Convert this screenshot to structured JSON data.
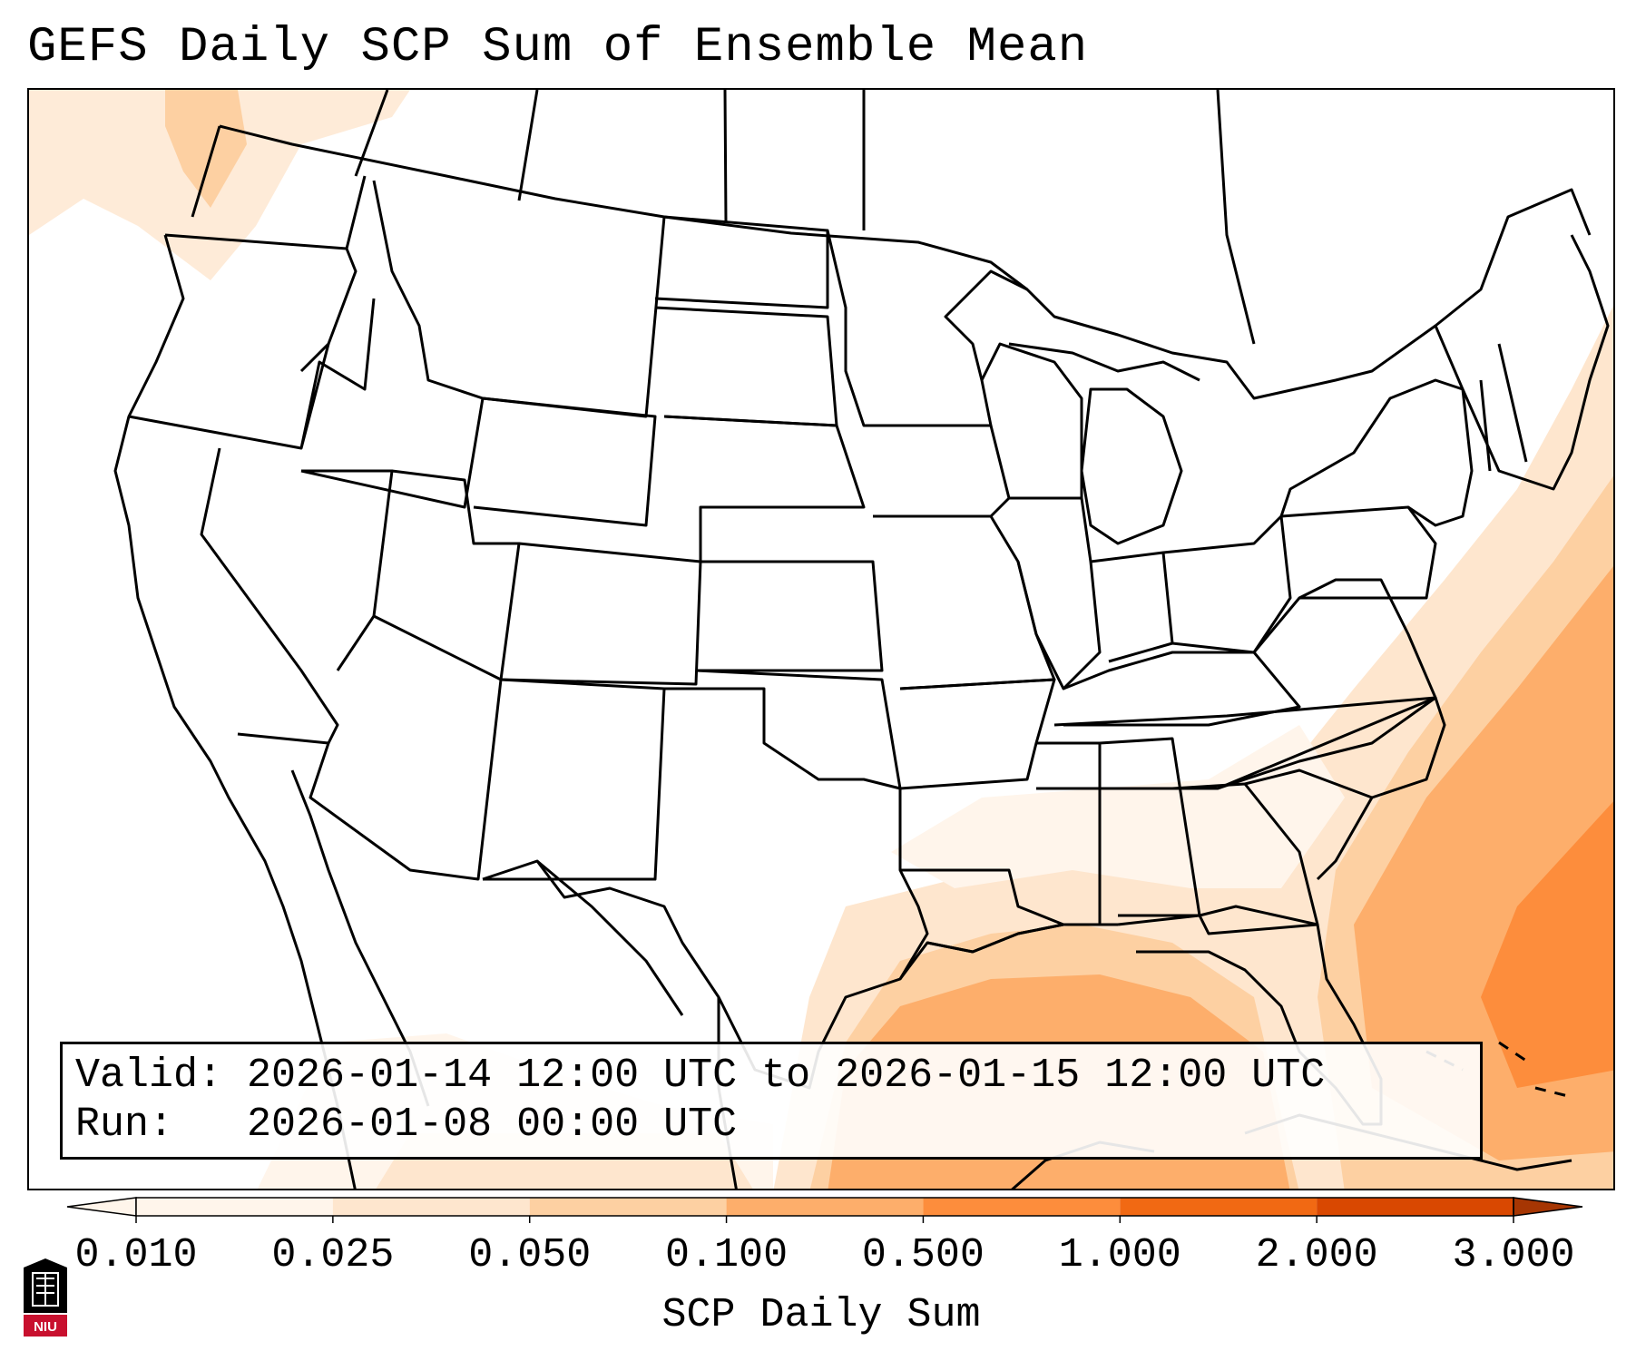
{
  "title": "GEFS Daily SCP Sum of Ensemble Mean",
  "info": {
    "valid_label": "Valid:",
    "valid_value": "2026-01-14 12:00 UTC to 2026-01-15 12:00 UTC",
    "run_label": "Run:",
    "run_value": "2026-01-08 00:00 UTC"
  },
  "colorbar": {
    "label": "SCP Daily Sum",
    "ticks": [
      "0.010",
      "0.025",
      "0.050",
      "0.100",
      "0.500",
      "1.000",
      "2.000",
      "3.000"
    ],
    "colors": [
      "#fff5eb",
      "#fee6ce",
      "#fdd0a2",
      "#fdae6b",
      "#fd8d3c",
      "#f16913",
      "#d94801",
      "#a63603"
    ]
  },
  "logo": {
    "text": "NIU"
  }
}
